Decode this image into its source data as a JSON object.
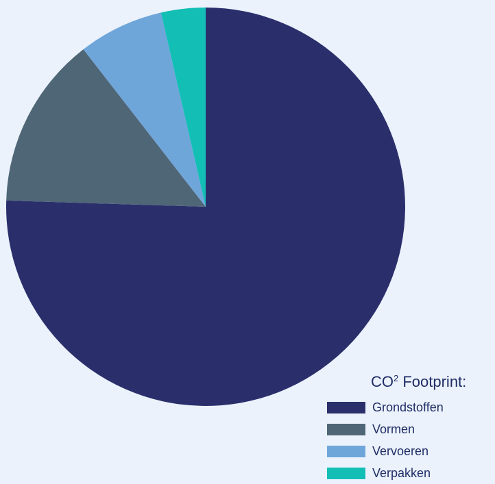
{
  "chart_data": {
    "type": "pie",
    "title_main": "CO",
    "title_sup": "2",
    "title_rest": " Footprint:",
    "legend_position": "bottom-right",
    "start_angle_deg": 0,
    "direction": "clockwise",
    "slices": [
      {
        "label": "Grondstoffen",
        "value": 75.5,
        "color": "#2a2f6c"
      },
      {
        "label": "Vormen",
        "value": 14.0,
        "color": "#4f6677"
      },
      {
        "label": "Vervoeren",
        "value": 6.9,
        "color": "#6fa6da"
      },
      {
        "label": "Verpakken",
        "value": 3.6,
        "color": "#13beb5"
      }
    ]
  }
}
